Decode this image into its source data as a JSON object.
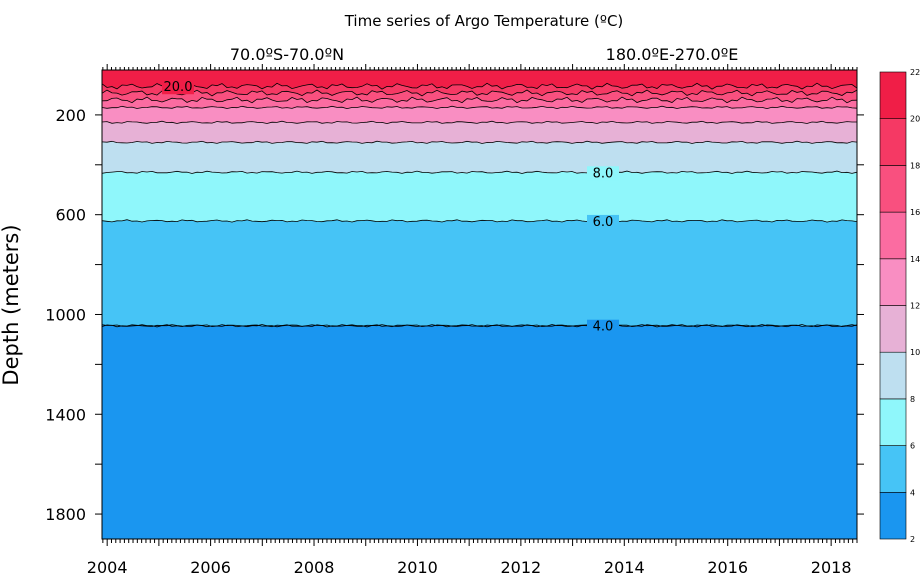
{
  "chart_data": {
    "type": "heatmap",
    "title": "Time series of Argo Temperature (ºC)",
    "region_lat": "70.0ºS-70.0ºN",
    "region_lon": "180.0ºE-270.0ºE",
    "xlabel": "",
    "ylabel": "Depth (meters)",
    "x_ticks": [
      "2004",
      "2006",
      "2008",
      "2010",
      "2012",
      "2014",
      "2016",
      "2018"
    ],
    "x_range": [
      2003.9,
      2018.5
    ],
    "y_ticks": [
      200,
      600,
      1000,
      1400,
      1800
    ],
    "ylim": [
      1900,
      20
    ],
    "y_inverted": true,
    "colorbar": {
      "levels": [
        2,
        4,
        6,
        8,
        10,
        12,
        14,
        16,
        18,
        20,
        22
      ],
      "colors": [
        "#1a96f0",
        "#46c4f6",
        "#8ff7fb",
        "#bedff0",
        "#e7b1d6",
        "#f98ec2",
        "#fb6ca1",
        "#f9507f",
        "#f53964",
        "#f01e47"
      ]
    },
    "isotherm_depths_m": {
      "4": 1045,
      "6": 625,
      "8": 430,
      "10": 310,
      "12": 230,
      "14": 170,
      "16": 140,
      "18": 112,
      "20": 85,
      "22": 55
    },
    "contour_labels": [
      {
        "text": "20.0",
        "value": 20
      },
      {
        "text": "8.0",
        "value": 8
      },
      {
        "text": "6.0",
        "value": 6
      },
      {
        "text": "4.0",
        "value": 4
      }
    ]
  }
}
